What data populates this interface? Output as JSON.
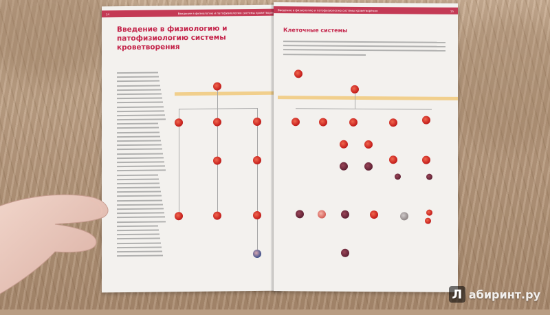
{
  "photo": {
    "description_tag": "open textbook on fabric surface held by hand"
  },
  "left_page": {
    "page_number": "14",
    "running_head": "Введение в физиологию и патофизиологию системы кроветворения",
    "chapter_title": "Введение в физиологию и патофизиологию системы кроветворения"
  },
  "right_page": {
    "page_number": "15",
    "running_head": "Введение в физиологию и патофизиологию системы кроветворения",
    "section_title": "Клеточные системы"
  },
  "watermark": {
    "text": "абиринт.ру",
    "badge": "Л"
  },
  "colors": {
    "accent": "#c4254b",
    "cell_red": "#c9231f",
    "band_yellow": "#f1cf8c"
  }
}
